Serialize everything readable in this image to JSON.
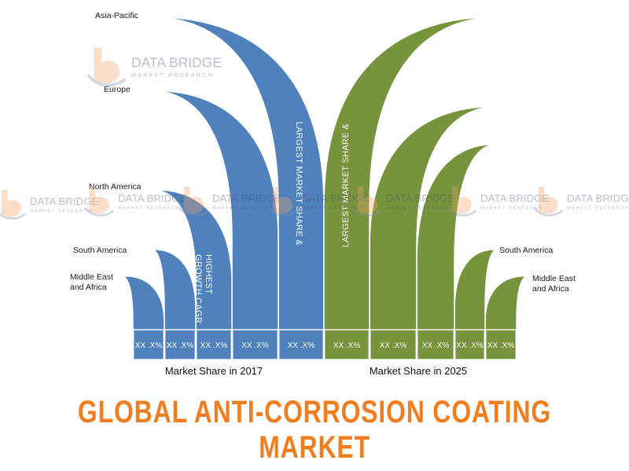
{
  "title": "GLOBAL ANTI-CORROSION COATING MARKET",
  "watermark": {
    "main": "DATA BRIDGE",
    "sub": "MARKET RESEARCH"
  },
  "colors": {
    "series_2017": "#4f81bd",
    "series_2025": "#77933c",
    "title": "#f07d1e"
  },
  "chart_data": {
    "type": "bar",
    "categories": [
      "Middle East and Africa",
      "South America",
      "North America",
      "Europe",
      "Asia-Pacific"
    ],
    "region_labels": {
      "left": [
        "Middle East\nand Africa",
        "South America",
        "North America",
        "Europe",
        "Asia-Pacific"
      ],
      "right": [
        "South America",
        "Middle East\nand Africa"
      ]
    },
    "series": [
      {
        "name": "Market Share in 2017",
        "order": [
          "Middle East and Africa",
          "South America",
          "North America",
          "Europe",
          "Asia-Pacific"
        ],
        "value_labels": [
          "XX .X%",
          "XX .X%",
          "XX .X%",
          "XX .X%",
          "XX .X%"
        ],
        "annotations": [
          {
            "category": "North America",
            "text": "HIGHEST\nGROWTH CAGR"
          },
          {
            "category": "Asia-Pacific",
            "text": "LARGEST MARKET SHARE &"
          }
        ]
      },
      {
        "name": "Market Share in 2025",
        "order": [
          "Asia-Pacific",
          "Europe",
          "North America",
          "South America",
          "Middle East and Africa"
        ],
        "value_labels": [
          "XX .X%",
          "XX .X%",
          "XX .X%",
          "XX .X%",
          "XX .X%"
        ],
        "annotations": [
          {
            "category": "Asia-Pacific",
            "text": "LARGEST MARKET SHARE &"
          }
        ]
      }
    ]
  }
}
